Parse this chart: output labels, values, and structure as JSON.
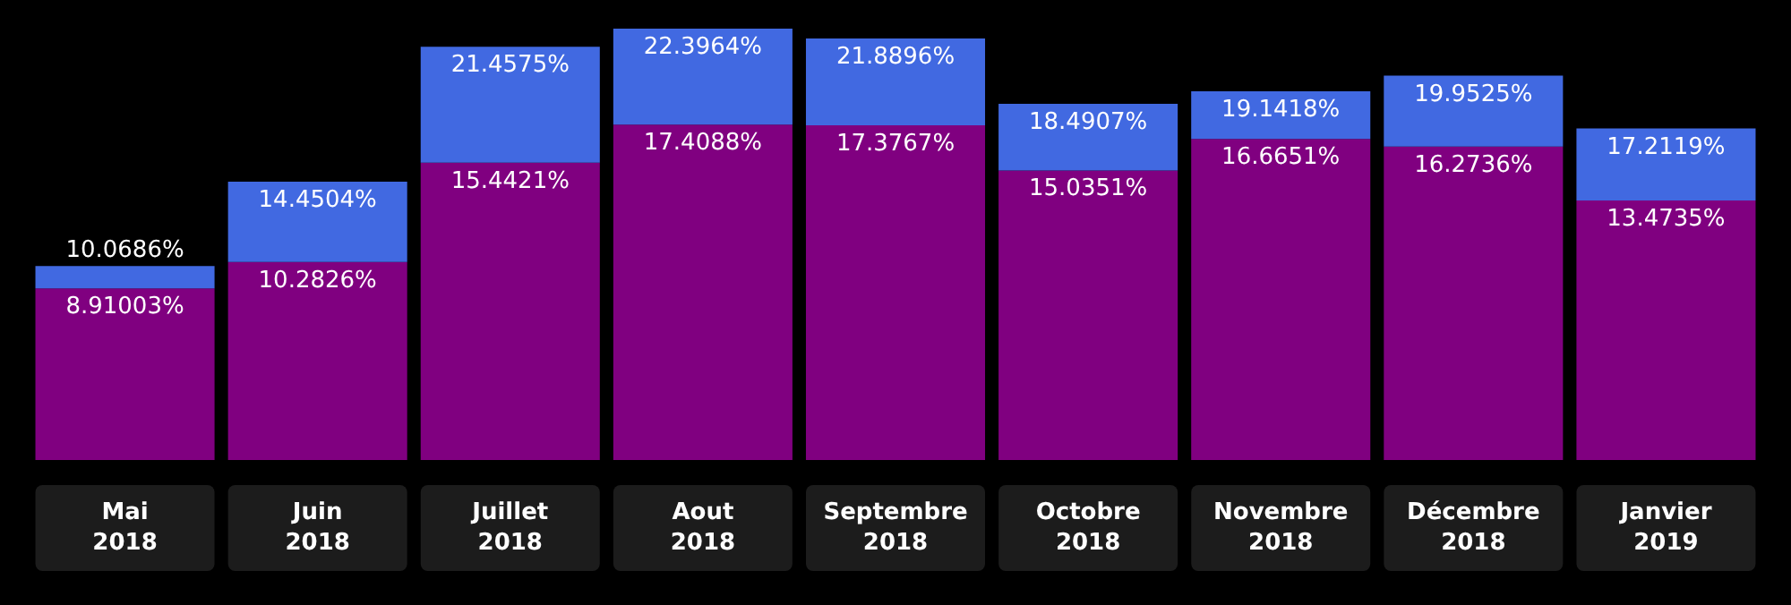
{
  "chart_data": {
    "type": "bar",
    "stacked": true,
    "categories": [
      "Mai 2018",
      "Juin 2018",
      "Juillet 2018",
      "Aout 2018",
      "Septembre 2018",
      "Octobre 2018",
      "Novembre 2018",
      "Décembre 2018",
      "Janvier 2019"
    ],
    "series": [
      {
        "color": "#800080",
        "values": [
          8.91003,
          10.2826,
          15.4421,
          17.4088,
          17.3767,
          15.0351,
          16.6651,
          16.2736,
          13.4735
        ],
        "value_labels": [
          "8.91003%",
          "10.2826%",
          "15.4421%",
          "17.4088%",
          "17.3767%",
          "15.0351%",
          "16.6651%",
          "16.2736%",
          "13.4735%"
        ]
      },
      {
        "color": "#4169e1",
        "values": [
          1.15857,
          4.1678,
          6.0154,
          4.9876,
          4.5129,
          3.4556,
          2.4767,
          3.6789,
          3.7384
        ]
      }
    ],
    "totals": [
      "10.0686%",
      "14.4504%",
      "21.4575%",
      "22.3964%",
      "21.8896%",
      "18.4907%",
      "19.1418%",
      "19.9525%",
      "17.2119%"
    ]
  }
}
